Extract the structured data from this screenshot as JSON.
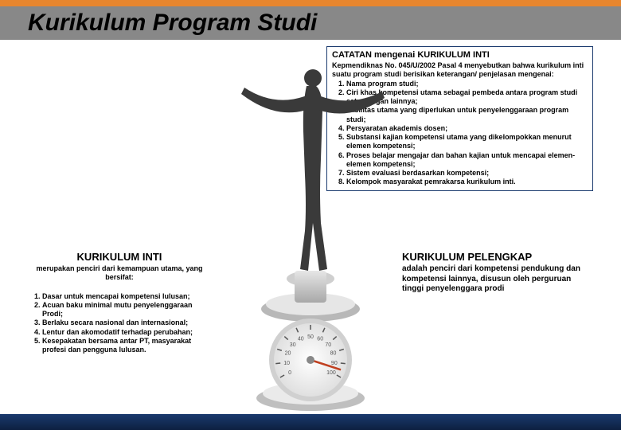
{
  "header": {
    "title": "Kurikulum Program Studi"
  },
  "note": {
    "title": "CATATAN mengenai KURIKULUM INTI",
    "intro": "Kepmendiknas No. 045/U/2002 Pasal 4 menyebutkan bahwa kurikulum inti suatu program studi berisikan keterangan/ penjelasan mengenai:",
    "items": [
      "Nama program studi;",
      "Ciri khas kompetensi utama sebagai pembeda antara program studi satu dengan lainnya;",
      "Fasilitas utama yang diperlukan untuk penyelenggaraan program studi;",
      "Persyaratan akademis dosen;",
      "Substansi kajian kompetensi utama yang dikelompokkan menurut elemen kompetensi;",
      "Proses belajar mengajar dan bahan kajian untuk mencapai elemen-elemen kompetensi;",
      "Sistem evaluasi berdasarkan kompetensi;",
      "Kelompok masyarakat pemrakarsa kurikulum inti."
    ]
  },
  "left": {
    "title": "KURIKULUM INTI",
    "subtitle": "merupakan penciri dari kemampuan utama, yang bersifat:",
    "items": [
      "Dasar untuk mencapai kompetensi lulusan;",
      "Acuan baku minimal mutu penyelenggaraan Prodi;",
      "Berlaku secara nasional dan internasional;",
      "Lentur dan akomodatif terhadap perubahan;",
      "Kesepakatan bersama antar PT, masyarakat profesi dan pengguna lulusan."
    ]
  },
  "right": {
    "title": "KURIKULUM PELENGKAP",
    "subtitle": "adalah penciri dari kompetensi pendukung dan kompetensi lainnya, disusun oleh perguruan tinggi penyelenggara prodi"
  },
  "gauge": {
    "ticks": [
      "0",
      "10",
      "20",
      "30",
      "40",
      "50",
      "60",
      "70",
      "80",
      "90",
      "100"
    ],
    "needle_angle": 95,
    "colors": {
      "dial": "#f5f5f5",
      "rim": "#d8d8d8",
      "tick": "#555555",
      "needle": "#c04020",
      "base_top": "#e0e0e0",
      "base_bottom": "#9a9a9a"
    }
  },
  "colors": {
    "orange": "#e8862e",
    "gray_title": "#888888",
    "navy": "#1a3a6e",
    "figure": "#3a3a3a"
  }
}
